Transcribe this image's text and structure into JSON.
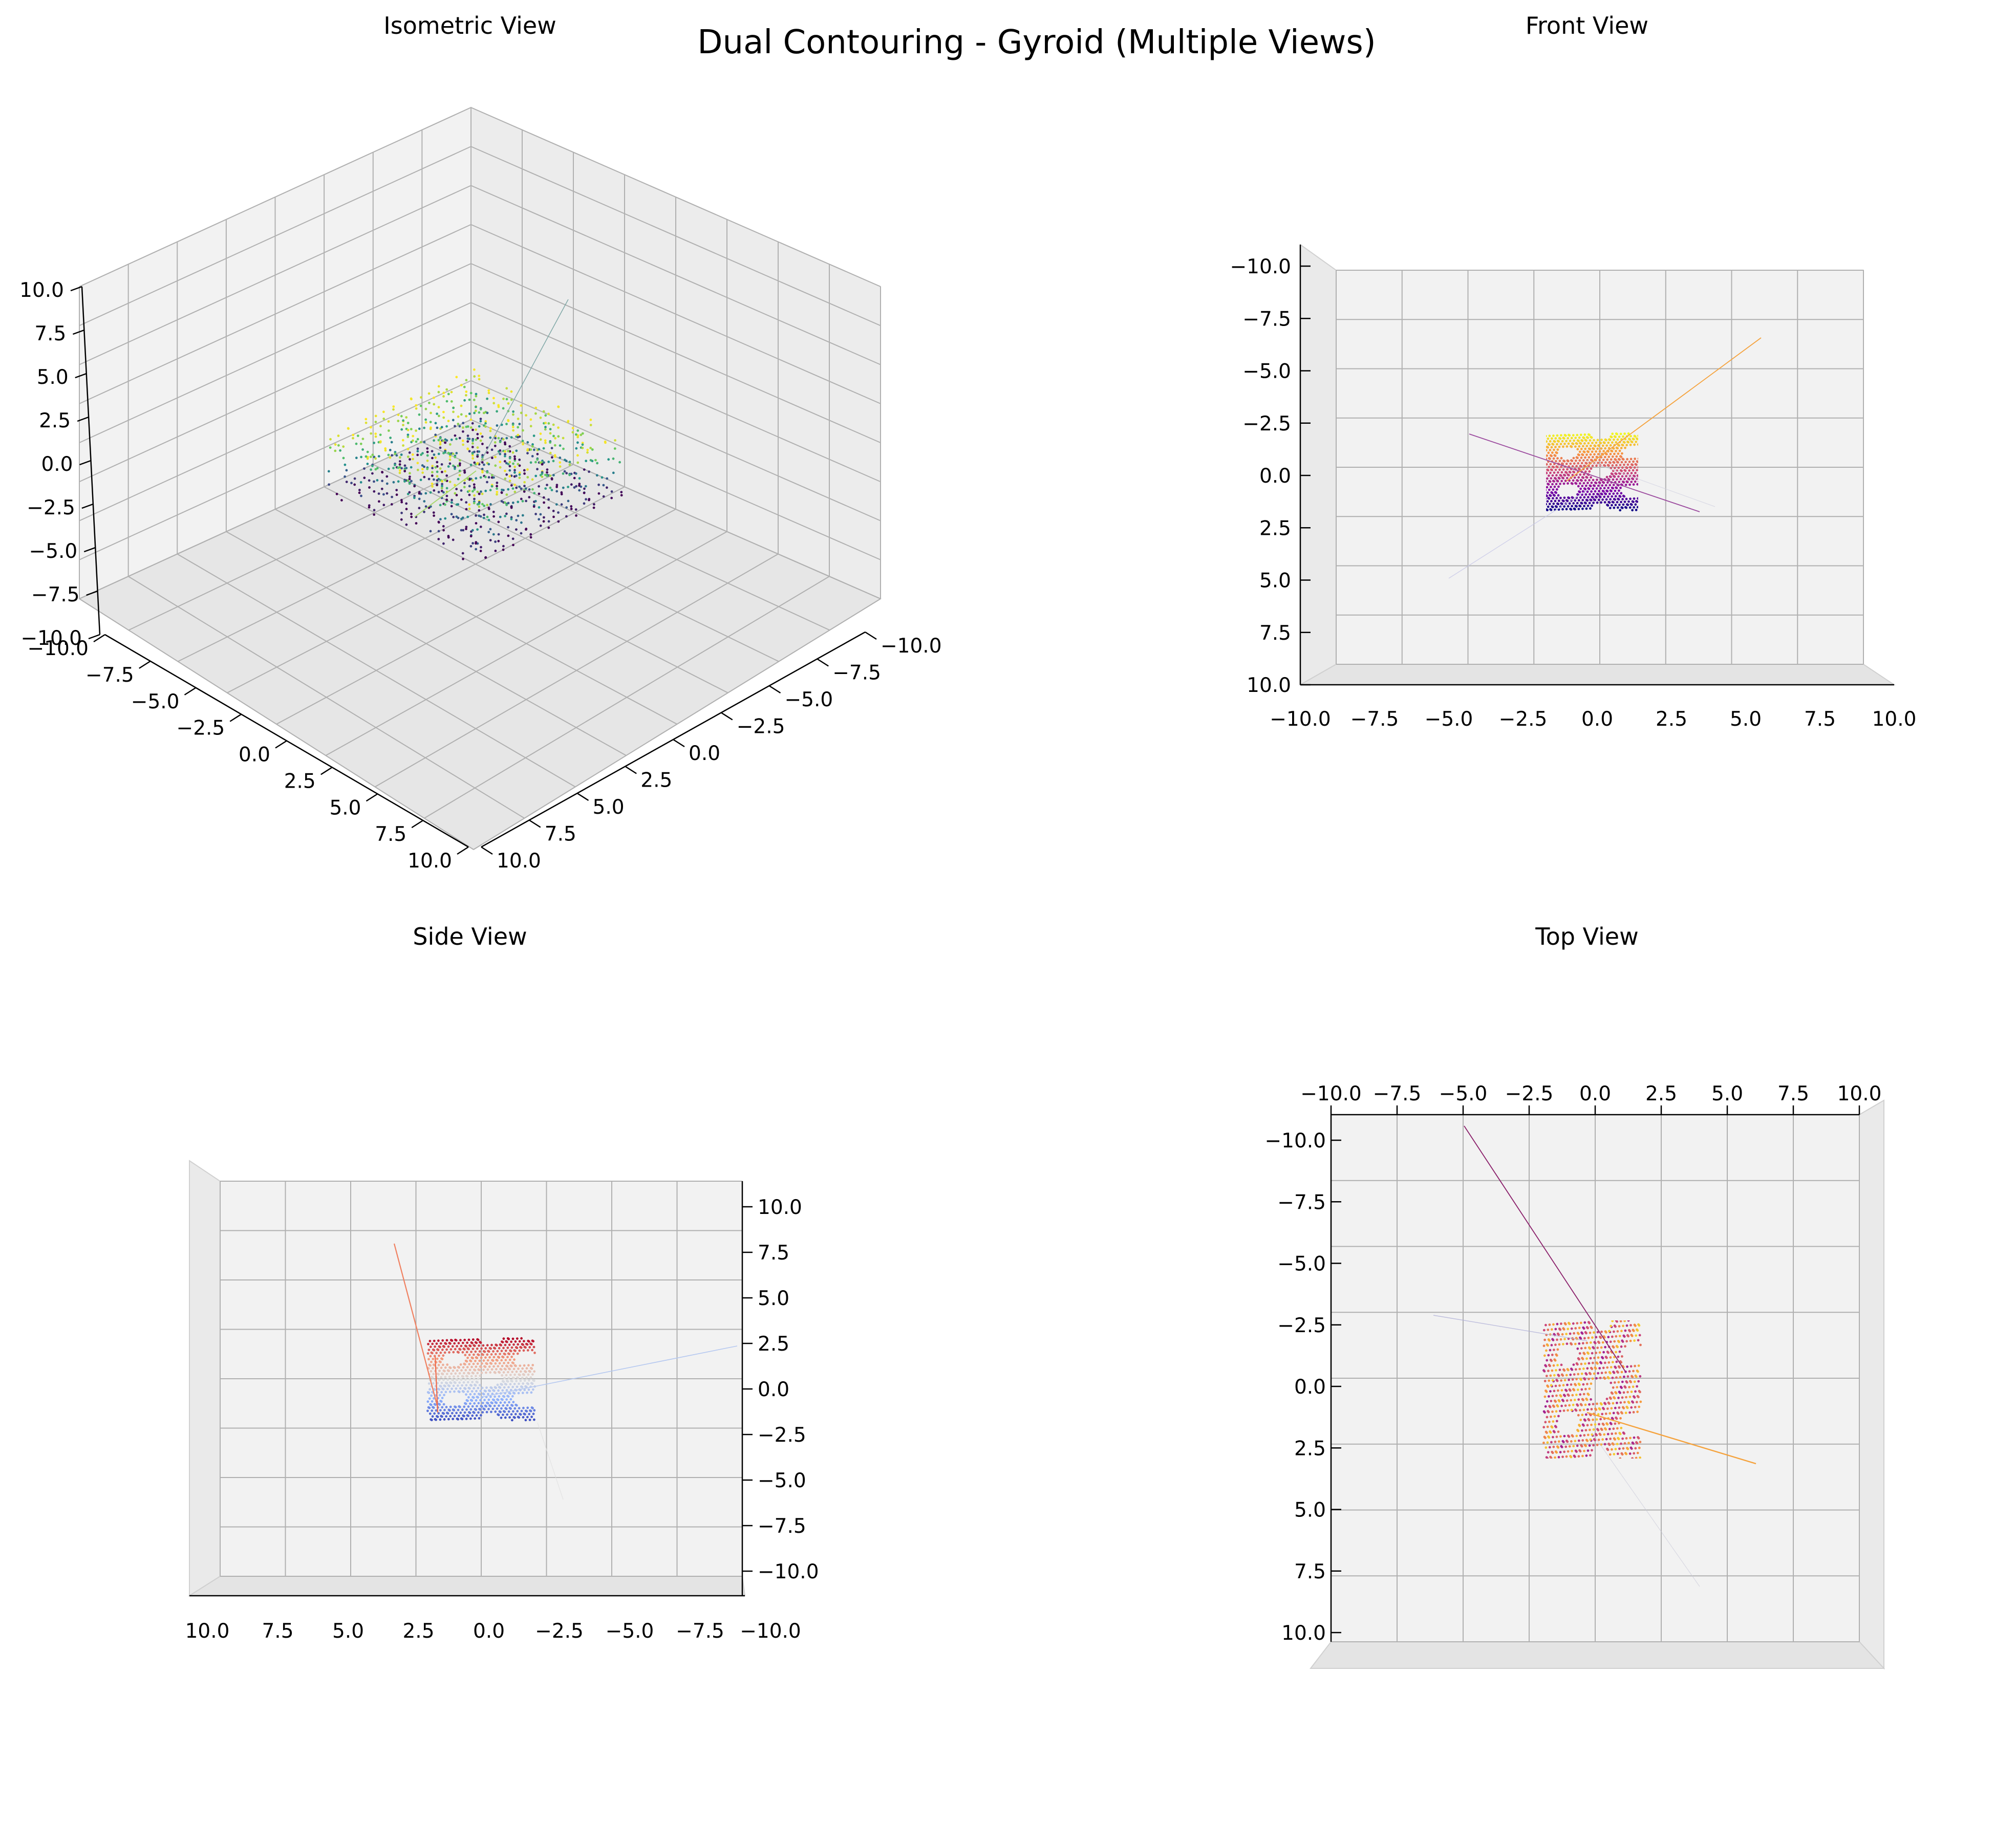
{
  "figure": {
    "title": "Dual Contouring - Gyroid (Multiple Views)"
  },
  "chart_data": [
    {
      "type": "scatter",
      "view": "Isometric View",
      "title": "Isometric View",
      "projection": "3d",
      "elevation": 30,
      "azimuth": 45,
      "colormap": "viridis",
      "xlim": [
        -10,
        10
      ],
      "ylim": [
        -10,
        10
      ],
      "zlim": [
        -10,
        10
      ],
      "x_ticks": [
        "−10.0",
        "−7.5",
        "−5.0",
        "−2.5",
        "0.0",
        "2.5",
        "5.0",
        "7.5",
        "10.0"
      ],
      "y_ticks": [
        "−10.0",
        "−7.5",
        "−5.0",
        "−2.5",
        "0.0",
        "2.5",
        "5.0",
        "7.5",
        "10.0"
      ],
      "z_ticks": [
        "−10.0",
        "−7.5",
        "−5.0",
        "−2.5",
        "0.0",
        "2.5",
        "5.0",
        "7.5",
        "10.0"
      ],
      "mesh_extent": {
        "x": [
          -2.5,
          2.5
        ],
        "y": [
          -2.5,
          2.5
        ],
        "z": [
          -2,
          2
        ]
      },
      "grid": true
    },
    {
      "type": "scatter",
      "view": "Front View",
      "title": "Front View",
      "projection": "3d",
      "elevation": 0,
      "azimuth": 0,
      "colormap": "plasma",
      "xlim": [
        -10,
        10
      ],
      "ylim": [
        -10,
        10
      ],
      "zlim": [
        -10,
        10
      ],
      "x_ticks": [
        "−10.0",
        "−7.5",
        "−5.0",
        "−2.5",
        "0.0",
        "2.5",
        "5.0",
        "7.5",
        "10.0"
      ],
      "z_ticks": [
        "−10.0",
        "−7.5",
        "−5.0",
        "−2.5",
        "0.0",
        "2.5",
        "5.0",
        "7.5",
        "10.0"
      ],
      "mesh_extent": {
        "x": [
          -2,
          2
        ],
        "z": [
          -2,
          2
        ]
      },
      "grid": true
    },
    {
      "type": "scatter",
      "view": "Side View",
      "title": "Side View",
      "projection": "3d",
      "elevation": 0,
      "azimuth": 90,
      "colormap": "coolwarm",
      "xlim": [
        -10,
        10
      ],
      "ylim": [
        -10,
        10
      ],
      "zlim": [
        -10,
        10
      ],
      "x_ticks": [
        "10.0",
        "7.5",
        "5.0",
        "2.5",
        "0.0",
        "−2.5",
        "−5.0",
        "−7.5",
        "−10.0"
      ],
      "z_ticks": [
        "10.0",
        "7.5",
        "5.0",
        "2.5",
        "0.0",
        "−2.5",
        "−5.0",
        "−7.5",
        "−10.0"
      ],
      "mesh_extent": {
        "y": [
          -2,
          2
        ],
        "z": [
          -2,
          2
        ]
      },
      "grid": true
    },
    {
      "type": "scatter",
      "view": "Top View",
      "title": "Top View",
      "projection": "3d",
      "elevation": 90,
      "azimuth": 0,
      "colormap": "plasma",
      "xlim": [
        -10,
        10
      ],
      "ylim": [
        -10,
        10
      ],
      "zlim": [
        -10,
        10
      ],
      "x_ticks": [
        "−10.0",
        "−7.5",
        "−5.0",
        "−2.5",
        "0.0",
        "2.5",
        "5.0",
        "7.5",
        "10.0"
      ],
      "y_ticks": [
        "−10.0",
        "−7.5",
        "−5.0",
        "−2.5",
        "0.0",
        "2.5",
        "5.0",
        "7.5",
        "10.0"
      ],
      "mesh_extent": {
        "x": [
          -2,
          2
        ],
        "y": [
          -2,
          2
        ]
      },
      "grid": true
    }
  ]
}
